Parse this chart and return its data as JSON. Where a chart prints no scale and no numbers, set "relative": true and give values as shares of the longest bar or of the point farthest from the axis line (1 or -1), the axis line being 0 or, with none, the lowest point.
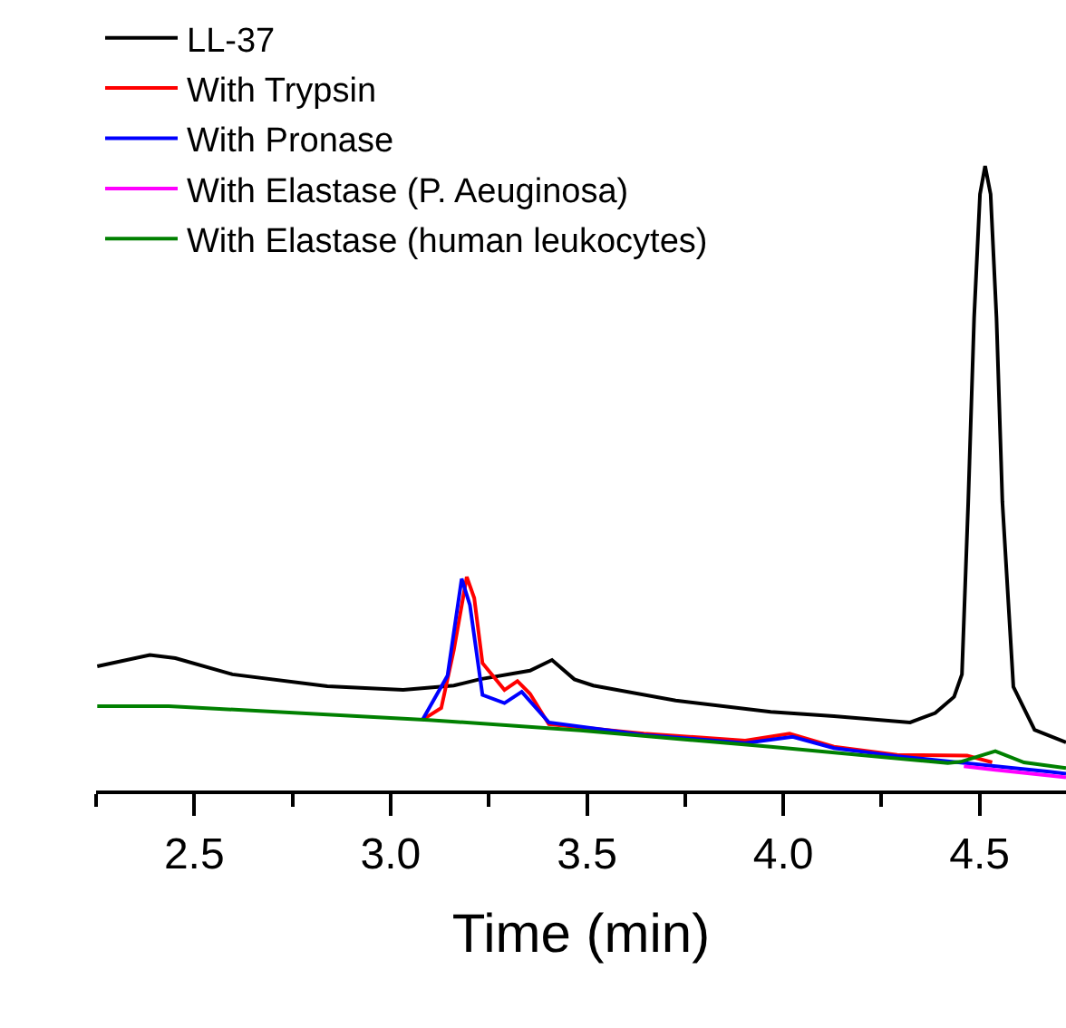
{
  "chart_data": {
    "type": "line",
    "xlabel": "Time (min)",
    "relative": true,
    "legend": "top left",
    "marker": "none",
    "line_style": "solid",
    "xlim": [
      2.25,
      4.72
    ],
    "xticks": [
      {
        "value": 2.25,
        "label": null
      },
      2.5,
      {
        "value": 2.75,
        "label": null
      },
      {
        "value": 3,
        "label": "3.0"
      },
      {
        "value": 3.25,
        "label": null
      },
      3.5,
      {
        "value": 3.75,
        "label": null
      },
      {
        "value": 4,
        "label": "4.0"
      },
      {
        "value": 4.25,
        "label": null
      },
      4.5
    ],
    "series": [
      {
        "name": "LL-37",
        "color": "#000000",
        "x": [
          2.253,
          2.387,
          2.452,
          2.597,
          2.839,
          3.032,
          3.161,
          3.226,
          3.355,
          3.411,
          3.468,
          3.516,
          3.726,
          3.968,
          4.129,
          4.323,
          4.387,
          4.435,
          4.455,
          4.471,
          4.486,
          4.501,
          4.514,
          4.528,
          4.543,
          4.558,
          4.586,
          4.64,
          4.72
        ],
        "values": [
          0.199,
          0.217,
          0.212,
          0.186,
          0.167,
          0.161,
          0.168,
          0.178,
          0.192,
          0.209,
          0.178,
          0.168,
          0.144,
          0.126,
          0.119,
          0.109,
          0.124,
          0.15,
          0.186,
          0.462,
          0.757,
          0.955,
          1.0,
          0.955,
          0.757,
          0.462,
          0.166,
          0.097,
          0.077
        ]
      },
      {
        "name": "With Trypsin",
        "color": "#ff0000",
        "x": [
          3.081,
          3.129,
          3.161,
          3.194,
          3.213,
          3.234,
          3.29,
          3.323,
          3.355,
          3.403,
          3.645,
          3.903,
          4.016,
          4.129,
          4.29,
          4.468,
          4.532
        ],
        "values": [
          0.113,
          0.132,
          0.225,
          0.342,
          0.308,
          0.204,
          0.161,
          0.175,
          0.155,
          0.106,
          0.091,
          0.08,
          0.091,
          0.07,
          0.057,
          0.056,
          0.045
        ]
      },
      {
        "name": "With Pronase",
        "color": "#0000ff",
        "x": [
          3.081,
          3.145,
          3.181,
          3.202,
          3.234,
          3.29,
          3.334,
          3.403,
          3.645,
          3.903,
          4.024,
          4.129,
          4.29,
          4.677,
          4.72
        ],
        "values": [
          0.113,
          0.184,
          0.339,
          0.297,
          0.153,
          0.14,
          0.158,
          0.109,
          0.089,
          0.076,
          0.086,
          0.068,
          0.055,
          0.03,
          0.027
        ]
      },
      {
        "name": "With Elastase (P. Aeuginosa)",
        "color": "#ff00ff",
        "x": [
          4.46,
          4.54,
          4.677,
          4.72
        ],
        "values": [
          0.039,
          0.033,
          0.024,
          0.021
        ]
      },
      {
        "name": "With Elastase (human leukocytes)",
        "color": "#008000",
        "x": [
          2.253,
          2.435,
          3.097,
          3.484,
          3.968,
          4.419,
          4.452,
          4.54,
          4.613,
          4.72
        ],
        "values": [
          0.135,
          0.135,
          0.113,
          0.096,
          0.07,
          0.044,
          0.046,
          0.063,
          0.045,
          0.036
        ]
      }
    ]
  }
}
